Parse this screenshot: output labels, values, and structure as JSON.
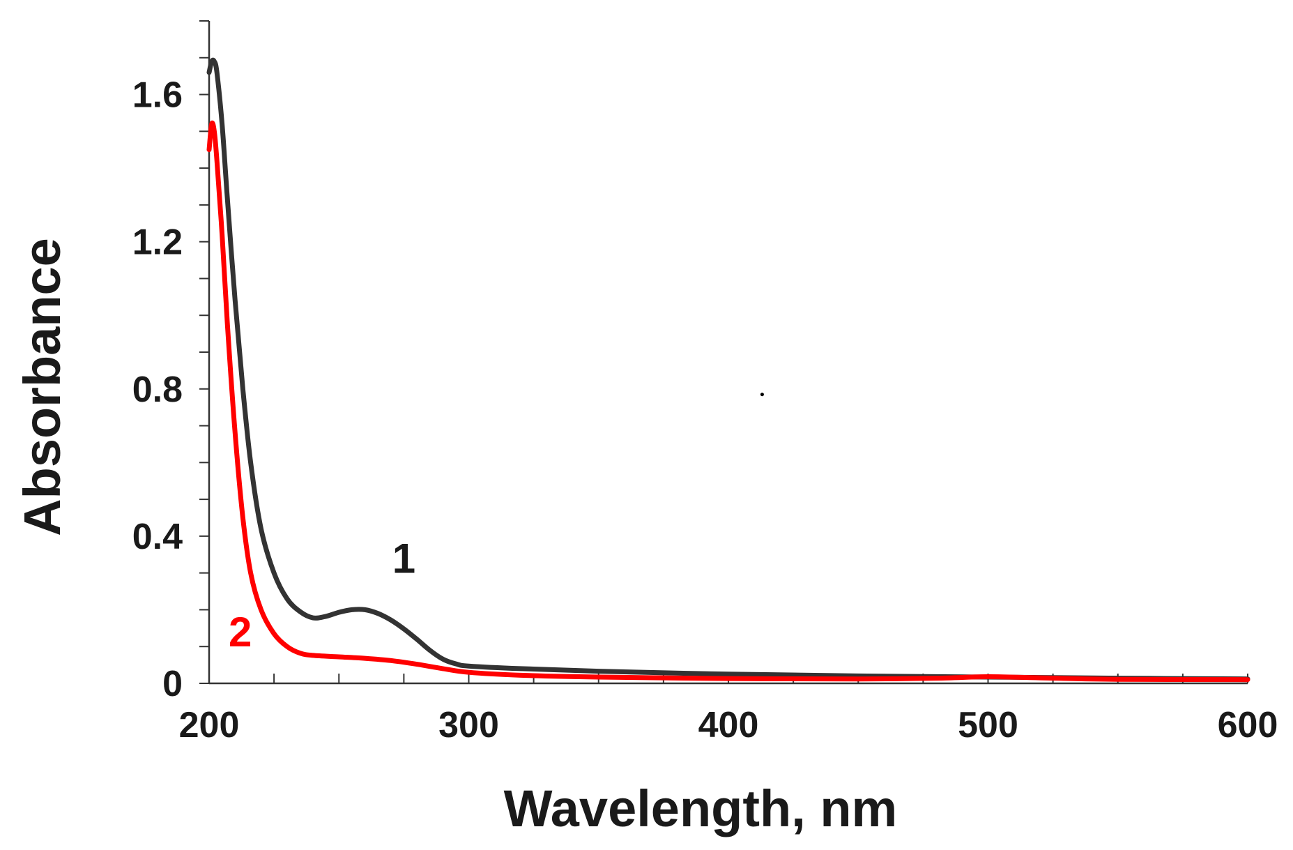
{
  "chart_data": {
    "type": "line",
    "title": "",
    "xlabel": "Wavelength, nm",
    "ylabel": "Absorbance",
    "xlim": [
      200,
      600
    ],
    "ylim": [
      0,
      1.8
    ],
    "x_ticks": [
      200,
      300,
      400,
      500,
      600
    ],
    "x_tick_labels": [
      "200",
      "300",
      "400",
      "500",
      "600"
    ],
    "y_ticks": [
      0,
      0.4,
      0.8,
      1.2,
      1.6
    ],
    "y_tick_labels": [
      "0",
      "0.4",
      "0.8",
      "1.2",
      "1.6"
    ],
    "x_minor_step": 25,
    "y_minor_step": 0.1,
    "grid": false,
    "series": [
      {
        "name": "1",
        "label": "1",
        "color": "#333333",
        "label_anchor": [
          275,
          0.3
        ],
        "points": [
          [
            200,
            1.66
          ],
          [
            201,
            1.69
          ],
          [
            202,
            1.69
          ],
          [
            203,
            1.66
          ],
          [
            205,
            1.52
          ],
          [
            207,
            1.32
          ],
          [
            210,
            1.04
          ],
          [
            213,
            0.8
          ],
          [
            216,
            0.6
          ],
          [
            220,
            0.42
          ],
          [
            225,
            0.3
          ],
          [
            230,
            0.23
          ],
          [
            235,
            0.195
          ],
          [
            240,
            0.178
          ],
          [
            245,
            0.182
          ],
          [
            250,
            0.193
          ],
          [
            255,
            0.2
          ],
          [
            260,
            0.2
          ],
          [
            265,
            0.19
          ],
          [
            270,
            0.172
          ],
          [
            275,
            0.148
          ],
          [
            280,
            0.12
          ],
          [
            285,
            0.09
          ],
          [
            290,
            0.066
          ],
          [
            295,
            0.053
          ],
          [
            300,
            0.047
          ],
          [
            320,
            0.04
          ],
          [
            350,
            0.033
          ],
          [
            400,
            0.025
          ],
          [
            450,
            0.02
          ],
          [
            500,
            0.017
          ],
          [
            550,
            0.014
          ],
          [
            600,
            0.012
          ]
        ]
      },
      {
        "name": "2",
        "label": "2",
        "color": "#ff0000",
        "label_anchor": [
          212,
          0.1
        ],
        "points": [
          [
            200,
            1.45
          ],
          [
            201,
            1.52
          ],
          [
            202,
            1.5
          ],
          [
            203,
            1.42
          ],
          [
            205,
            1.22
          ],
          [
            207,
            0.98
          ],
          [
            210,
            0.68
          ],
          [
            213,
            0.45
          ],
          [
            216,
            0.3
          ],
          [
            220,
            0.2
          ],
          [
            225,
            0.135
          ],
          [
            230,
            0.1
          ],
          [
            235,
            0.082
          ],
          [
            240,
            0.076
          ],
          [
            250,
            0.072
          ],
          [
            260,
            0.068
          ],
          [
            270,
            0.062
          ],
          [
            280,
            0.052
          ],
          [
            290,
            0.04
          ],
          [
            300,
            0.03
          ],
          [
            320,
            0.022
          ],
          [
            350,
            0.017
          ],
          [
            400,
            0.013
          ],
          [
            450,
            0.012
          ],
          [
            480,
            0.014
          ],
          [
            500,
            0.018
          ],
          [
            520,
            0.015
          ],
          [
            550,
            0.011
          ],
          [
            600,
            0.01
          ]
        ]
      }
    ],
    "annotations": [
      {
        "type": "dot",
        "x": 413,
        "y": 0.785
      }
    ]
  }
}
